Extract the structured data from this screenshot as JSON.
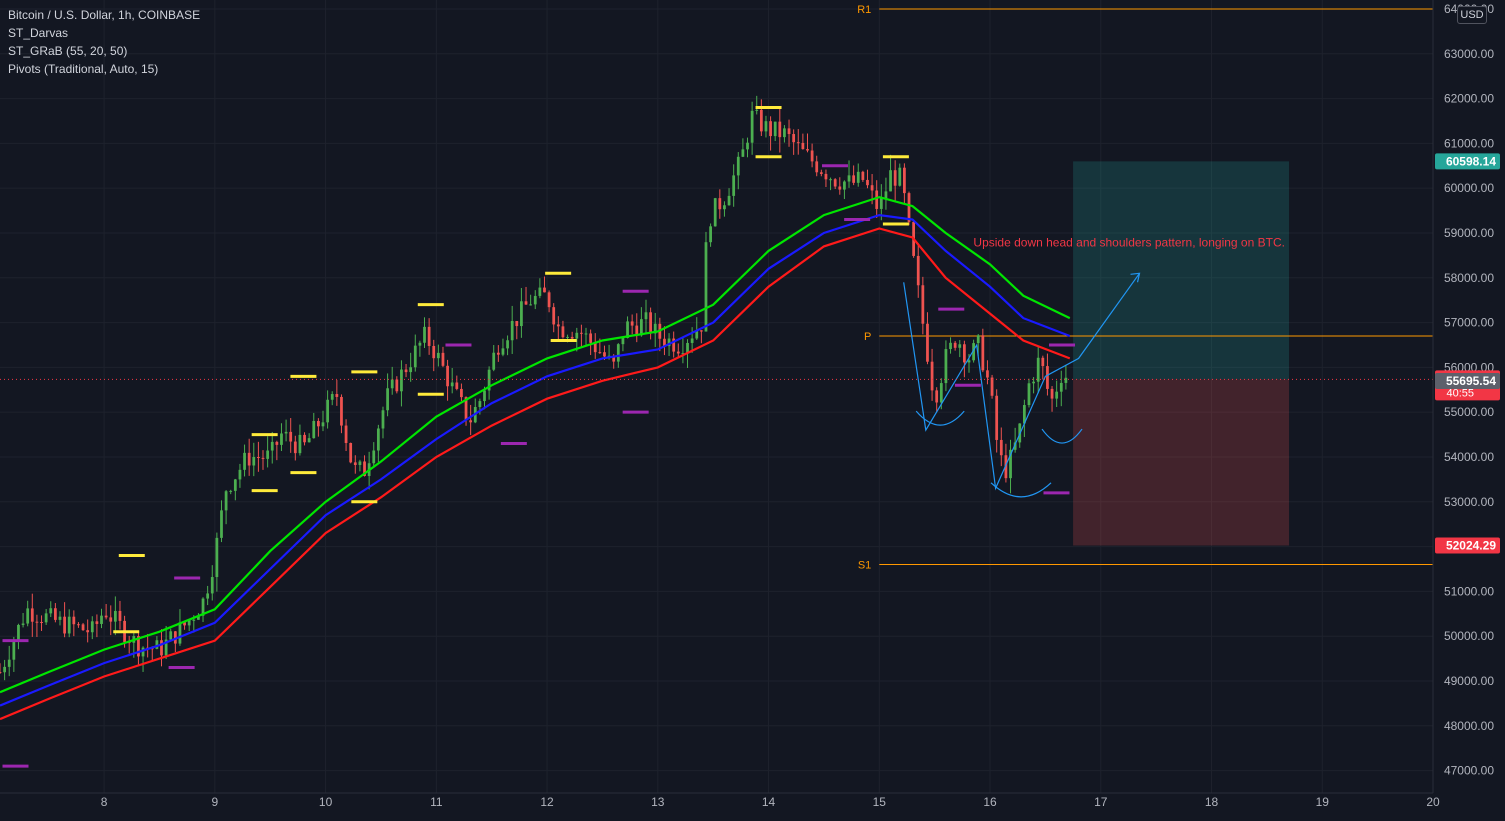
{
  "header": {
    "symbol_line": "Bitcoin / U.S. Dollar, 1h, COINBASE",
    "indicators": [
      "ST_Darvas",
      "ST_GRaB (55, 20, 50)",
      "Pivots (Traditional, Auto, 15)"
    ],
    "currency": "USD"
  },
  "annotation": "Upside down head and shoulders pattern, longing on BTC.",
  "colors": {
    "background": "#131722",
    "grid": "#1e222d",
    "up": "#26a69a",
    "up_strong": "#4caf50",
    "down": "#ef5350",
    "ema_fast": "#00e600",
    "ema_mid": "#1a1aff",
    "ema_slow": "#ff1a1a",
    "pivot_line": "#ff9800",
    "darvas_high": "#ffeb3b",
    "darvas_low": "#9c27b0",
    "pattern_line": "#2196f3",
    "target_zone": "#26a69a",
    "stop_zone": "#ef5350",
    "annotation_text": "#f23645"
  },
  "chart_data": {
    "type": "candlestick",
    "title": "Bitcoin / U.S. Dollar, 1h, COINBASE",
    "x_ticks": [
      "8",
      "9",
      "10",
      "11",
      "12",
      "13",
      "14",
      "15",
      "16",
      "17",
      "18",
      "19",
      "20"
    ],
    "x_tick_days": [
      8,
      9,
      10,
      11,
      12,
      13,
      14,
      15,
      16,
      17,
      18,
      19,
      20
    ],
    "x_range": [
      7.06,
      20.0
    ],
    "y_ticks": [
      "47000.00",
      "48000.00",
      "49000.00",
      "50000.00",
      "51000.00",
      "52000.00",
      "53000.00",
      "54000.00",
      "55000.00",
      "56000.00",
      "57000.00",
      "58000.00",
      "59000.00",
      "60000.00",
      "61000.00",
      "62000.00",
      "63000.00",
      "64000.00"
    ],
    "y_range": [
      46500,
      64200
    ],
    "price_path": [
      [
        7.06,
        49200
      ],
      [
        7.3,
        50600
      ],
      [
        7.6,
        50300
      ],
      [
        7.9,
        50100
      ],
      [
        8.0,
        50600
      ],
      [
        8.3,
        49800
      ],
      [
        8.5,
        49700
      ],
      [
        8.75,
        50300
      ],
      [
        8.9,
        50800
      ],
      [
        9.0,
        51800
      ],
      [
        9.1,
        53300
      ],
      [
        9.3,
        54000
      ],
      [
        9.5,
        54000
      ],
      [
        9.6,
        54500
      ],
      [
        9.8,
        54200
      ],
      [
        10.0,
        55000
      ],
      [
        10.1,
        55400
      ],
      [
        10.25,
        53700
      ],
      [
        10.35,
        53700
      ],
      [
        10.55,
        55300
      ],
      [
        10.75,
        56100
      ],
      [
        10.9,
        56700
      ],
      [
        11.0,
        56300
      ],
      [
        11.15,
        55500
      ],
      [
        11.3,
        54800
      ],
      [
        11.4,
        55300
      ],
      [
        11.55,
        56500
      ],
      [
        11.7,
        57000
      ],
      [
        11.85,
        57500
      ],
      [
        12.0,
        57600
      ],
      [
        12.1,
        56900
      ],
      [
        12.3,
        56800
      ],
      [
        12.5,
        56300
      ],
      [
        12.6,
        56000
      ],
      [
        12.7,
        56900
      ],
      [
        12.9,
        57000
      ],
      [
        13.0,
        56700
      ],
      [
        13.2,
        56500
      ],
      [
        13.4,
        57000
      ],
      [
        13.45,
        59300
      ],
      [
        13.6,
        59800
      ],
      [
        13.75,
        60600
      ],
      [
        13.85,
        61600
      ],
      [
        14.0,
        61300
      ],
      [
        14.15,
        61200
      ],
      [
        14.3,
        60800
      ],
      [
        14.45,
        60500
      ],
      [
        14.6,
        60200
      ],
      [
        14.75,
        60100
      ],
      [
        14.85,
        60200
      ],
      [
        15.0,
        59500
      ],
      [
        15.1,
        60300
      ],
      [
        15.2,
        60200
      ],
      [
        15.3,
        58500
      ],
      [
        15.38,
        57200
      ],
      [
        15.5,
        55300
      ],
      [
        15.6,
        56200
      ],
      [
        15.7,
        56700
      ],
      [
        15.8,
        56200
      ],
      [
        15.9,
        56500
      ],
      [
        16.0,
        55500
      ],
      [
        16.08,
        54000
      ],
      [
        16.15,
        53700
      ],
      [
        16.25,
        54400
      ],
      [
        16.35,
        55600
      ],
      [
        16.45,
        56200
      ],
      [
        16.55,
        55200
      ],
      [
        16.65,
        55900
      ],
      [
        16.72,
        55733.57
      ]
    ],
    "ema": [
      {
        "name": "ST_GRaB high",
        "color": "#00e600",
        "points": [
          [
            7.06,
            48750
          ],
          [
            7.5,
            49200
          ],
          [
            8.0,
            49700
          ],
          [
            8.5,
            50100
          ],
          [
            9.0,
            50600
          ],
          [
            9.5,
            51900
          ],
          [
            10.0,
            53000
          ],
          [
            10.5,
            53900
          ],
          [
            11.0,
            54900
          ],
          [
            11.5,
            55600
          ],
          [
            12.0,
            56200
          ],
          [
            12.5,
            56600
          ],
          [
            13.0,
            56800
          ],
          [
            13.5,
            57400
          ],
          [
            14.0,
            58600
          ],
          [
            14.5,
            59400
          ],
          [
            15.0,
            59800
          ],
          [
            15.3,
            59600
          ],
          [
            15.6,
            59000
          ],
          [
            16.0,
            58300
          ],
          [
            16.3,
            57600
          ],
          [
            16.72,
            57100
          ]
        ]
      },
      {
        "name": "ST_GRaB mid",
        "color": "#1a1aff",
        "points": [
          [
            7.06,
            48450
          ],
          [
            7.5,
            48900
          ],
          [
            8.0,
            49400
          ],
          [
            8.5,
            49800
          ],
          [
            9.0,
            50300
          ],
          [
            9.5,
            51500
          ],
          [
            10.0,
            52700
          ],
          [
            10.5,
            53500
          ],
          [
            11.0,
            54400
          ],
          [
            11.5,
            55200
          ],
          [
            12.0,
            55800
          ],
          [
            12.5,
            56200
          ],
          [
            13.0,
            56400
          ],
          [
            13.5,
            57000
          ],
          [
            14.0,
            58200
          ],
          [
            14.5,
            59000
          ],
          [
            15.0,
            59400
          ],
          [
            15.3,
            59300
          ],
          [
            15.6,
            58600
          ],
          [
            16.0,
            57800
          ],
          [
            16.3,
            57100
          ],
          [
            16.72,
            56700
          ]
        ]
      },
      {
        "name": "ST_GRaB low",
        "color": "#ff1a1a",
        "points": [
          [
            7.06,
            48150
          ],
          [
            7.5,
            48600
          ],
          [
            8.0,
            49100
          ],
          [
            8.5,
            49500
          ],
          [
            9.0,
            49900
          ],
          [
            9.5,
            51100
          ],
          [
            10.0,
            52300
          ],
          [
            10.5,
            53100
          ],
          [
            11.0,
            54000
          ],
          [
            11.5,
            54700
          ],
          [
            12.0,
            55300
          ],
          [
            12.5,
            55700
          ],
          [
            13.0,
            56000
          ],
          [
            13.5,
            56600
          ],
          [
            14.0,
            57800
          ],
          [
            14.5,
            58700
          ],
          [
            15.0,
            59100
          ],
          [
            15.3,
            58900
          ],
          [
            15.6,
            58000
          ],
          [
            16.0,
            57200
          ],
          [
            16.3,
            56600
          ],
          [
            16.72,
            56200
          ]
        ]
      }
    ],
    "pivots": [
      {
        "label": "R1",
        "value": 64000,
        "from": 15.0,
        "to": 20.0
      },
      {
        "label": "P",
        "value": 56700,
        "from": 15.0,
        "to": 20.0
      },
      {
        "label": "S1",
        "value": 51600,
        "from": 15.0,
        "to": 20.0
      }
    ],
    "darvas_tops": [
      [
        8.2,
        50100
      ],
      [
        8.25,
        51800
      ],
      [
        9.45,
        54500
      ],
      [
        9.45,
        53250
      ],
      [
        9.8,
        55800
      ],
      [
        9.8,
        53650
      ],
      [
        10.35,
        55900
      ],
      [
        10.35,
        53000
      ],
      [
        10.95,
        57400
      ],
      [
        10.95,
        55400
      ],
      [
        12.1,
        58100
      ],
      [
        12.15,
        56600
      ],
      [
        14.0,
        61800
      ],
      [
        14.0,
        60700
      ],
      [
        15.15,
        60700
      ],
      [
        15.15,
        59200
      ]
    ],
    "darvas_bottoms": [
      [
        7.2,
        49900
      ],
      [
        7.2,
        47100
      ],
      [
        8.7,
        49300
      ],
      [
        8.75,
        51300
      ],
      [
        11.2,
        56500
      ],
      [
        11.7,
        54300
      ],
      [
        12.8,
        57700
      ],
      [
        12.8,
        55000
      ],
      [
        14.6,
        60500
      ],
      [
        14.8,
        59300
      ],
      [
        15.65,
        57300
      ],
      [
        15.8,
        55600
      ],
      [
        16.65,
        56500
      ],
      [
        16.6,
        53200
      ]
    ],
    "pattern_lines": [
      [
        [
          15.22,
          57900
        ],
        [
          15.42,
          54600
        ],
        [
          15.88,
          56500
        ],
        [
          16.05,
          53300
        ],
        [
          16.5,
          55800
        ],
        [
          16.8,
          56200
        ],
        [
          17.35,
          58100
        ]
      ]
    ],
    "position": {
      "entry": 55733.57,
      "target": 60598.14,
      "stop": 52024.29,
      "x_from": 16.75,
      "x_to": 18.7
    },
    "last_price": "55733.57",
    "countdown": "40:55",
    "price_labels": [
      {
        "text": "60598.14",
        "value": 60598.14,
        "bg": "#26a69a"
      },
      {
        "text": "55733.57",
        "value": 55733.57,
        "bg": "#f23645"
      },
      {
        "text": "55695.54",
        "value": 55695.54,
        "bg": "#5d606b"
      },
      {
        "text": "52024.29",
        "value": 52024.29,
        "bg": "#f23645"
      }
    ]
  }
}
